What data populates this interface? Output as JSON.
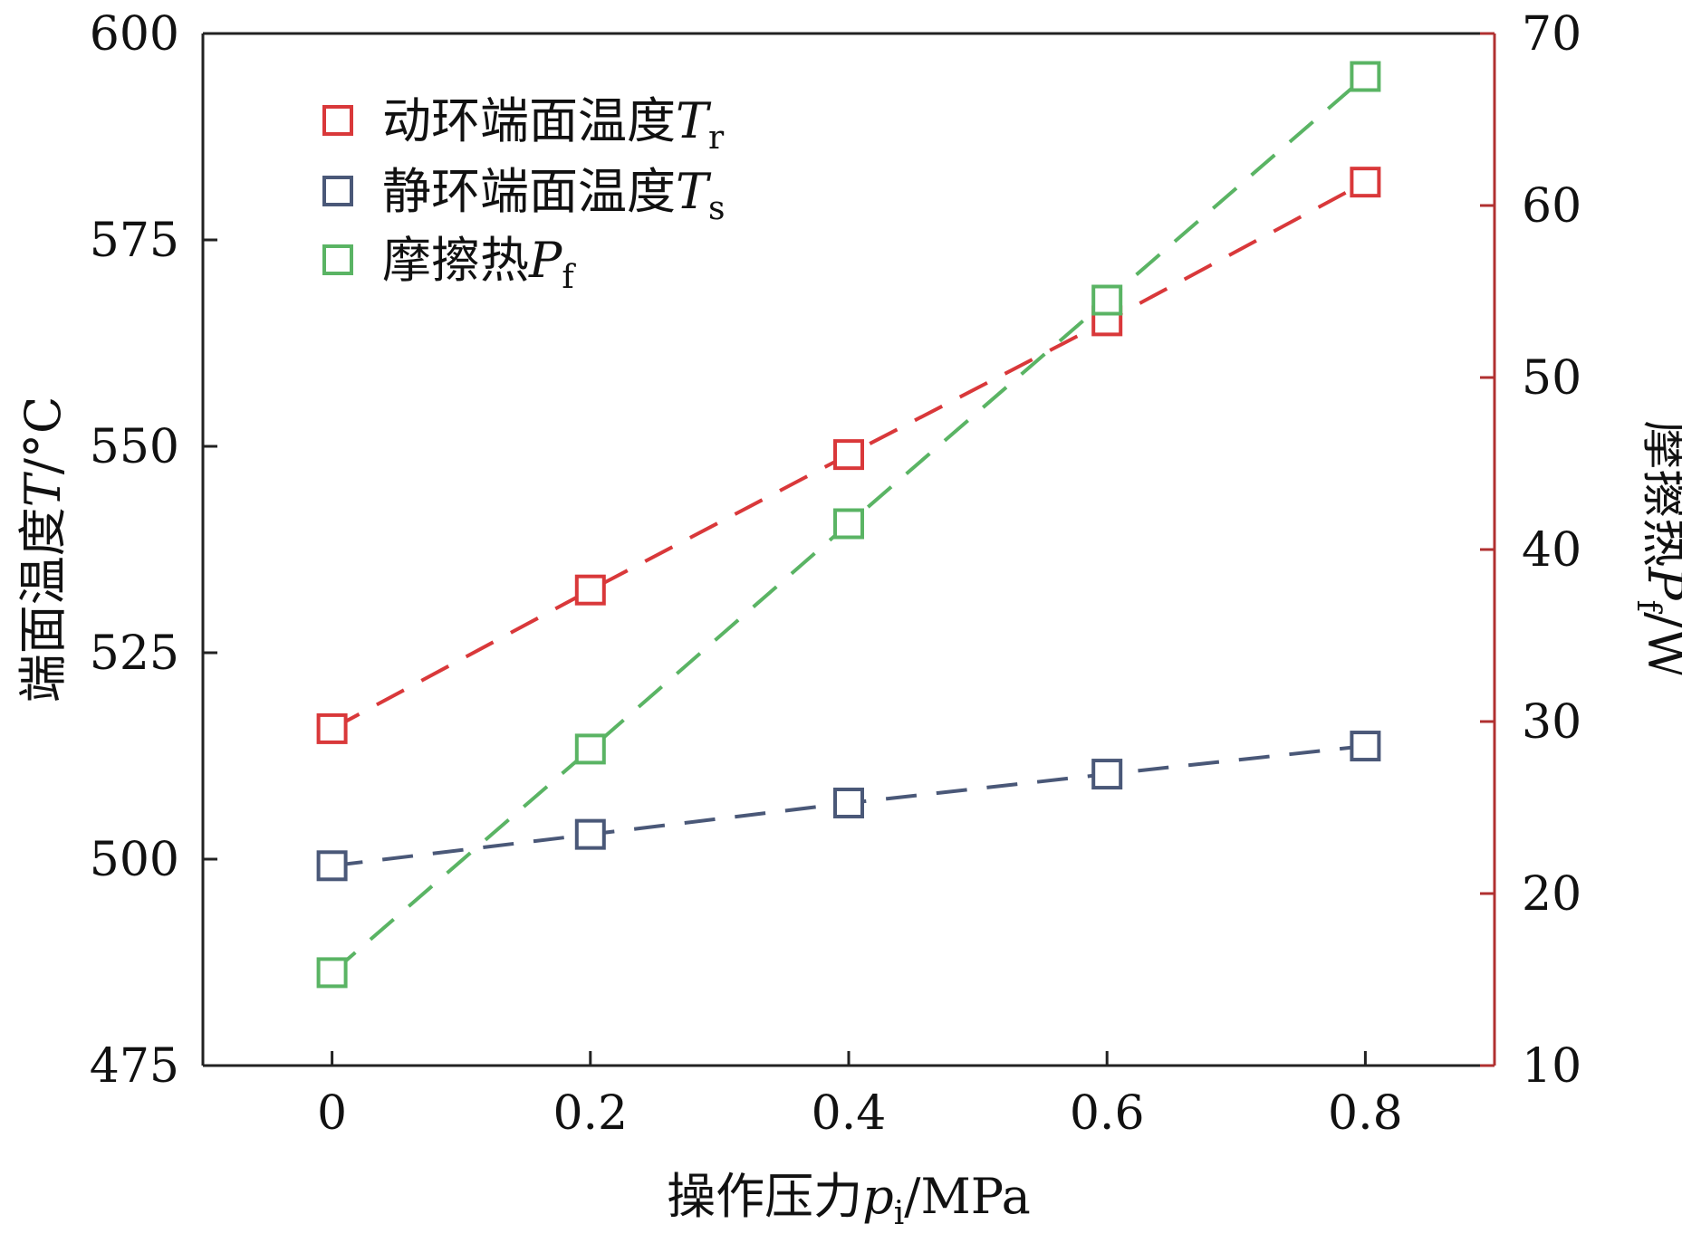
{
  "chart_data": {
    "type": "line",
    "xlabel": {
      "main": "操作压力",
      "var": "p",
      "sub": "i",
      "unit": "/MPa"
    },
    "ylabel_left": {
      "main": "端面温度",
      "var": "T",
      "unit": "/°C"
    },
    "ylabel_right": {
      "main": "摩擦热",
      "var": "P",
      "sub": "f",
      "unit": "/W"
    },
    "x": [
      0,
      0.2,
      0.4,
      0.6,
      0.8
    ],
    "xticks": [
      "0",
      "0.2",
      "0.4",
      "0.6",
      "0.8"
    ],
    "xlim": [
      -0.1,
      0.9
    ],
    "ylim_left": [
      475,
      600
    ],
    "yticks_left": [
      475,
      500,
      525,
      550,
      575,
      600
    ],
    "ylim_right": [
      10,
      70
    ],
    "yticks_right": [
      10,
      20,
      30,
      40,
      50,
      60,
      70
    ],
    "legend_position": "top-left",
    "right_axis_color": "#b03030",
    "series": [
      {
        "name": "动环端面温度",
        "var": "T",
        "sub": "r",
        "axis": "left",
        "color": "#d9383a",
        "values": [
          515.8,
          532.6,
          549.0,
          565.2,
          582.0
        ]
      },
      {
        "name": "静环端面温度",
        "var": "T",
        "sub": "s",
        "axis": "left",
        "color": "#4a5878",
        "values": [
          499.2,
          503.0,
          506.8,
          510.3,
          513.7
        ]
      },
      {
        "name": "摩擦热",
        "var": "P",
        "sub": "f",
        "axis": "right",
        "color": "#5ab464",
        "values": [
          15.4,
          28.4,
          41.5,
          54.5,
          67.5
        ]
      }
    ]
  }
}
